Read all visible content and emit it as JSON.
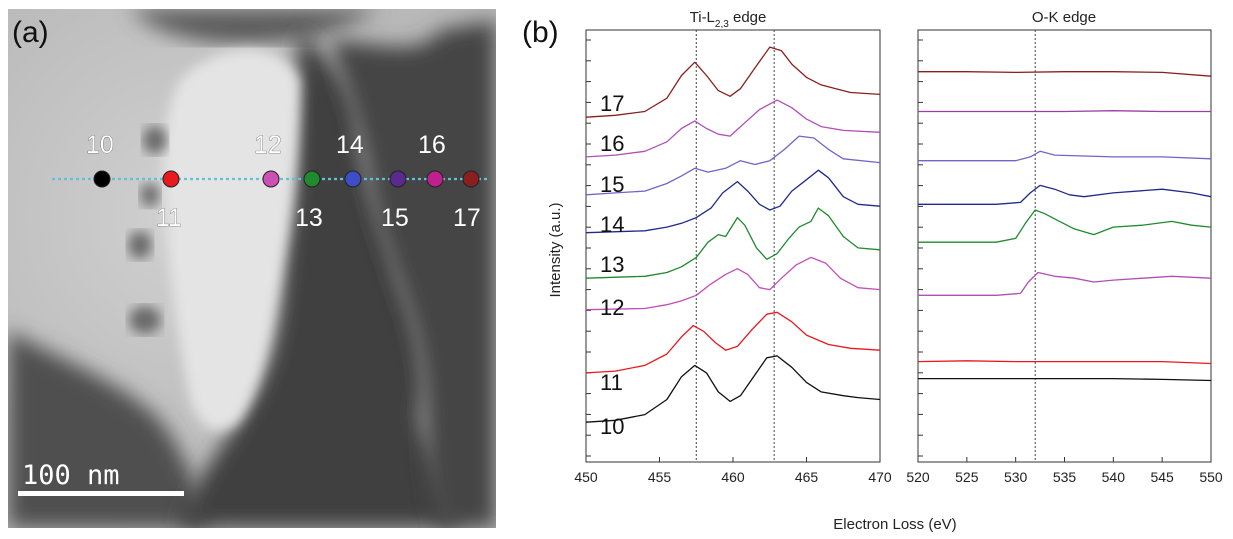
{
  "panel_a": {
    "label": "(a)",
    "scalebar": "100 nm",
    "line_color": "#5fc3d8",
    "points": [
      {
        "num": "10",
        "color": "#000000"
      },
      {
        "num": "11",
        "color": "#e8191f"
      },
      {
        "num": "12",
        "color": "#cc4fb4"
      },
      {
        "num": "13",
        "color": "#1f8a2e"
      },
      {
        "num": "14",
        "color": "#3d4fc8"
      },
      {
        "num": "15",
        "color": "#5a2a8c"
      },
      {
        "num": "16",
        "color": "#c0208e"
      },
      {
        "num": "17",
        "color": "#8a1f1f"
      }
    ]
  },
  "panel_b": {
    "label": "(b)",
    "ylabel": "Intensity (a.u.)",
    "xlabel": "Electron Loss (eV)"
  },
  "chart_data": [
    {
      "type": "line",
      "title_main": "Ti-L",
      "title_sub": "2,3",
      "title_rest": " edge",
      "xlim": [
        450,
        470
      ],
      "xticks": [
        450,
        455,
        460,
        465,
        470
      ],
      "reference_lines": [
        457.5,
        462.8
      ],
      "series_labels": [
        "17",
        "16",
        "15",
        "14",
        "13",
        "12",
        "11",
        "10"
      ],
      "series": [
        {
          "name": "17",
          "color": "#8a1f1f",
          "offset": 9.0,
          "points": [
            [
              450,
              0.1
            ],
            [
              452,
              0.15
            ],
            [
              454,
              0.25
            ],
            [
              455.5,
              0.6
            ],
            [
              456.5,
              1.2
            ],
            [
              457.4,
              1.55
            ],
            [
              458.2,
              1.2
            ],
            [
              459,
              0.8
            ],
            [
              459.8,
              0.65
            ],
            [
              460.5,
              0.85
            ],
            [
              461.5,
              1.4
            ],
            [
              462.5,
              1.95
            ],
            [
              463.3,
              1.85
            ],
            [
              464,
              1.5
            ],
            [
              465,
              1.15
            ],
            [
              466,
              0.95
            ],
            [
              467,
              0.85
            ],
            [
              468,
              0.75
            ],
            [
              470,
              0.7
            ]
          ]
        },
        {
          "name": "16",
          "color": "#b04fb4",
          "offset": 8.0,
          "points": [
            [
              450,
              0.05
            ],
            [
              452,
              0.1
            ],
            [
              454,
              0.2
            ],
            [
              455.5,
              0.45
            ],
            [
              456.5,
              0.8
            ],
            [
              457.4,
              1.0
            ],
            [
              458.2,
              0.8
            ],
            [
              459,
              0.65
            ],
            [
              459.8,
              0.6
            ],
            [
              460.8,
              0.95
            ],
            [
              461.8,
              1.3
            ],
            [
              463,
              1.55
            ],
            [
              464,
              1.35
            ],
            [
              465,
              1.05
            ],
            [
              466,
              0.85
            ],
            [
              467.5,
              0.75
            ],
            [
              470,
              0.7
            ]
          ]
        },
        {
          "name": "15",
          "color": "#6f66c8",
          "offset": 7.0,
          "points": [
            [
              450,
              0.05
            ],
            [
              452,
              0.1
            ],
            [
              454,
              0.15
            ],
            [
              455.5,
              0.35
            ],
            [
              456.5,
              0.55
            ],
            [
              457.4,
              0.75
            ],
            [
              458.3,
              0.65
            ],
            [
              459.5,
              0.75
            ],
            [
              460.5,
              0.95
            ],
            [
              461.5,
              0.85
            ],
            [
              462.5,
              0.95
            ],
            [
              463.5,
              1.25
            ],
            [
              464.5,
              1.6
            ],
            [
              465.5,
              1.55
            ],
            [
              466.5,
              1.25
            ],
            [
              467.5,
              1.0
            ],
            [
              470,
              0.9
            ]
          ]
        },
        {
          "name": "14",
          "color": "#1f2a8a",
          "offset": 6.0,
          "points": [
            [
              450,
              0.05
            ],
            [
              454,
              0.1
            ],
            [
              455.5,
              0.2
            ],
            [
              456.5,
              0.3
            ],
            [
              457.5,
              0.45
            ],
            [
              458.5,
              0.7
            ],
            [
              459.3,
              1.1
            ],
            [
              460.3,
              1.4
            ],
            [
              461,
              1.15
            ],
            [
              461.8,
              0.8
            ],
            [
              462.5,
              0.65
            ],
            [
              463.2,
              0.75
            ],
            [
              464,
              1.15
            ],
            [
              465,
              1.45
            ],
            [
              465.8,
              1.7
            ],
            [
              466.5,
              1.5
            ],
            [
              467.5,
              1.0
            ],
            [
              468.5,
              0.8
            ],
            [
              470,
              0.75
            ]
          ]
        },
        {
          "name": "13",
          "color": "#1f8a2e",
          "offset": 4.8,
          "points": [
            [
              450,
              0.05
            ],
            [
              454,
              0.1
            ],
            [
              455.5,
              0.2
            ],
            [
              456.5,
              0.35
            ],
            [
              457.5,
              0.6
            ],
            [
              458.3,
              1.0
            ],
            [
              459,
              1.2
            ],
            [
              459.5,
              1.15
            ],
            [
              460.3,
              1.65
            ],
            [
              460.8,
              1.45
            ],
            [
              461.6,
              0.85
            ],
            [
              462.3,
              0.55
            ],
            [
              463,
              0.7
            ],
            [
              463.8,
              1.1
            ],
            [
              464.5,
              1.4
            ],
            [
              465.3,
              1.55
            ],
            [
              465.8,
              1.9
            ],
            [
              466.5,
              1.7
            ],
            [
              467.5,
              1.15
            ],
            [
              468.5,
              0.85
            ],
            [
              470,
              0.8
            ]
          ]
        },
        {
          "name": "12",
          "color": "#c04fb8",
          "offset": 4.0,
          "points": [
            [
              450,
              0.02
            ],
            [
              454,
              0.05
            ],
            [
              455.5,
              0.15
            ],
            [
              456.5,
              0.25
            ],
            [
              457.5,
              0.4
            ],
            [
              458.5,
              0.7
            ],
            [
              459.5,
              0.95
            ],
            [
              460.3,
              1.1
            ],
            [
              461,
              0.95
            ],
            [
              461.8,
              0.6
            ],
            [
              462.5,
              0.55
            ],
            [
              463.3,
              0.85
            ],
            [
              464.3,
              1.2
            ],
            [
              465.3,
              1.4
            ],
            [
              466.3,
              1.25
            ],
            [
              467.3,
              0.85
            ],
            [
              468.5,
              0.6
            ],
            [
              470,
              0.55
            ]
          ]
        },
        {
          "name": "11",
          "color": "#e8191f",
          "offset": 2.3,
          "points": [
            [
              450,
              0.05
            ],
            [
              452,
              0.1
            ],
            [
              454,
              0.25
            ],
            [
              455.5,
              0.55
            ],
            [
              456.5,
              1.0
            ],
            [
              457.3,
              1.3
            ],
            [
              458,
              1.15
            ],
            [
              458.8,
              0.85
            ],
            [
              459.5,
              0.65
            ],
            [
              460.3,
              0.75
            ],
            [
              461.3,
              1.2
            ],
            [
              462.3,
              1.6
            ],
            [
              463,
              1.65
            ],
            [
              464,
              1.4
            ],
            [
              465,
              1.05
            ],
            [
              466.5,
              0.8
            ],
            [
              468,
              0.7
            ],
            [
              470,
              0.65
            ]
          ]
        },
        {
          "name": "10",
          "color": "#111111",
          "offset": 1.0,
          "points": [
            [
              450,
              0.05
            ],
            [
              452,
              0.1
            ],
            [
              454,
              0.25
            ],
            [
              455.5,
              0.65
            ],
            [
              456.5,
              1.25
            ],
            [
              457.4,
              1.55
            ],
            [
              458.2,
              1.35
            ],
            [
              459,
              0.85
            ],
            [
              459.8,
              0.6
            ],
            [
              460.5,
              0.75
            ],
            [
              461.5,
              1.3
            ],
            [
              462.3,
              1.75
            ],
            [
              463,
              1.8
            ],
            [
              464,
              1.5
            ],
            [
              465,
              1.1
            ],
            [
              466,
              0.85
            ],
            [
              467.5,
              0.75
            ],
            [
              468.5,
              0.7
            ],
            [
              470,
              0.65
            ]
          ]
        }
      ]
    },
    {
      "type": "line",
      "title": "O-K edge",
      "xlim": [
        520,
        550
      ],
      "xticks": [
        520,
        525,
        530,
        535,
        540,
        545,
        550
      ],
      "reference_lines": [
        532
      ],
      "series": [
        {
          "name": "17",
          "color": "#8a1f1f",
          "offset": 10.3,
          "points": [
            [
              520,
              0.0
            ],
            [
              525,
              0.0
            ],
            [
              530,
              -0.02
            ],
            [
              535,
              0.0
            ],
            [
              540,
              0.0
            ],
            [
              545,
              -0.02
            ],
            [
              550,
              -0.12
            ]
          ]
        },
        {
          "name": "16",
          "color": "#9b3fa8",
          "offset": 9.25,
          "points": [
            [
              520,
              0.0
            ],
            [
              525,
              0.0
            ],
            [
              530,
              0.0
            ],
            [
              535,
              0.0
            ],
            [
              540,
              0.02
            ],
            [
              545,
              0.0
            ],
            [
              550,
              0.0
            ]
          ]
        },
        {
          "name": "15",
          "color": "#6f66c8",
          "offset": 7.95,
          "points": [
            [
              520,
              0.0
            ],
            [
              526,
              0.0
            ],
            [
              530,
              0.0
            ],
            [
              531.5,
              0.1
            ],
            [
              532.5,
              0.25
            ],
            [
              534,
              0.15
            ],
            [
              540,
              0.1
            ],
            [
              545,
              0.1
            ],
            [
              550,
              0.05
            ]
          ]
        },
        {
          "name": "14",
          "color": "#1f2a8a",
          "offset": 6.8,
          "points": [
            [
              520,
              0.0
            ],
            [
              528,
              0.0
            ],
            [
              530.5,
              0.05
            ],
            [
              531.5,
              0.3
            ],
            [
              532.5,
              0.5
            ],
            [
              534,
              0.4
            ],
            [
              535.5,
              0.25
            ],
            [
              537,
              0.2
            ],
            [
              540,
              0.3
            ],
            [
              545,
              0.4
            ],
            [
              548,
              0.3
            ],
            [
              550,
              0.2
            ]
          ]
        },
        {
          "name": "13",
          "color": "#1f8a2e",
          "offset": 5.8,
          "points": [
            [
              520,
              0.0
            ],
            [
              528,
              0.0
            ],
            [
              530,
              0.1
            ],
            [
              531,
              0.5
            ],
            [
              532,
              0.85
            ],
            [
              533,
              0.75
            ],
            [
              534.5,
              0.55
            ],
            [
              536,
              0.35
            ],
            [
              538,
              0.2
            ],
            [
              540,
              0.4
            ],
            [
              543,
              0.45
            ],
            [
              546,
              0.55
            ],
            [
              548,
              0.45
            ],
            [
              550,
              0.4
            ]
          ]
        },
        {
          "name": "12",
          "color": "#b04fb4",
          "offset": 4.4,
          "points": [
            [
              520,
              0.0
            ],
            [
              528,
              0.0
            ],
            [
              530.5,
              0.05
            ],
            [
              531.3,
              0.35
            ],
            [
              532.3,
              0.6
            ],
            [
              534,
              0.5
            ],
            [
              536,
              0.45
            ],
            [
              538,
              0.35
            ],
            [
              540,
              0.4
            ],
            [
              543,
              0.45
            ],
            [
              546,
              0.5
            ],
            [
              550,
              0.45
            ]
          ]
        },
        {
          "name": "11",
          "color": "#e8191f",
          "offset": 2.65,
          "points": [
            [
              520,
              0.0
            ],
            [
              525,
              0.02
            ],
            [
              530,
              0.0
            ],
            [
              535,
              0.0
            ],
            [
              540,
              0.0
            ],
            [
              545,
              0.0
            ],
            [
              550,
              -0.05
            ]
          ]
        },
        {
          "name": "10",
          "color": "#111111",
          "offset": 2.2,
          "points": [
            [
              520,
              0.0
            ],
            [
              525,
              0.0
            ],
            [
              530,
              0.0
            ],
            [
              535,
              0.0
            ],
            [
              540,
              0.0
            ],
            [
              545,
              -0.02
            ],
            [
              550,
              -0.05
            ]
          ]
        }
      ]
    }
  ]
}
